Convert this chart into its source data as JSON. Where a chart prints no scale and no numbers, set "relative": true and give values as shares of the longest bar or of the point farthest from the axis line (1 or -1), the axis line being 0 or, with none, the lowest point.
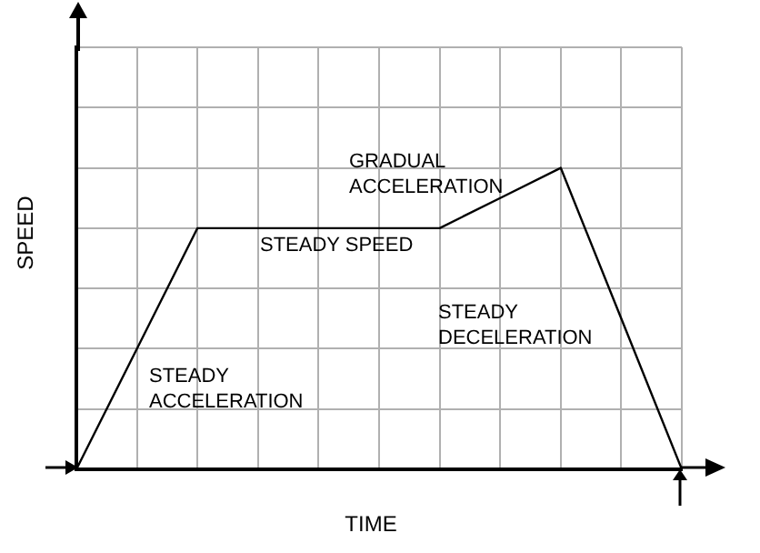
{
  "chart_data": {
    "type": "line",
    "xlabel": "TIME",
    "ylabel": "SPEED",
    "relative": true,
    "grid": true,
    "marker": "none",
    "line_style": "solid",
    "categories": [
      null,
      null,
      null,
      null,
      null,
      null,
      null,
      null,
      null,
      null,
      null
    ],
    "series": [
      {
        "color": "#000000",
        "values": [
          0,
          0.4,
          0.8,
          0.8,
          0.8,
          0.8,
          0.8,
          0.9,
          1,
          0.5,
          0
        ]
      }
    ],
    "annotations": [
      "STEADY\nACCELERATION",
      "STEADY SPEED",
      "GRADUAL\nACCELERATION",
      "STEADY\nDECELERATION"
    ]
  }
}
